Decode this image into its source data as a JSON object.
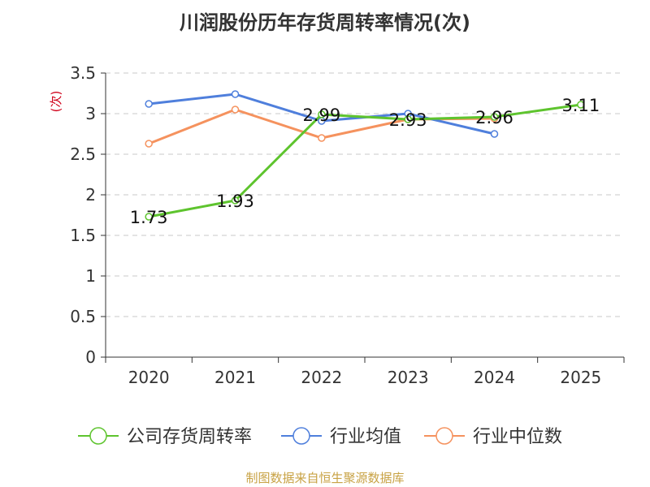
{
  "chart_data": {
    "type": "line",
    "title": "川润股份历年存货周转率情况(次)",
    "ylabel": "(次)",
    "xlabel": "",
    "categories": [
      "2020",
      "2021",
      "2022",
      "2023",
      "2024",
      "2025"
    ],
    "ylim": [
      0,
      3.5
    ],
    "yticks": [
      "0",
      "0.5",
      "1",
      "1.5",
      "2",
      "2.5",
      "3",
      "3.5"
    ],
    "grid": true,
    "legend_position": "bottom",
    "series": [
      {
        "name": "公司存货周转率",
        "color": "#5ec42e",
        "values": [
          1.73,
          1.93,
          2.99,
          2.93,
          2.96,
          3.11
        ],
        "labels": [
          "1.73",
          "1.93",
          "2.99",
          "2.93",
          "2.96",
          "3.11"
        ]
      },
      {
        "name": "行业均值",
        "color": "#4f7fdc",
        "values": [
          3.12,
          3.24,
          2.91,
          3.0,
          2.75,
          null
        ]
      },
      {
        "name": "行业中位数",
        "color": "#f5925e",
        "values": [
          2.63,
          3.05,
          2.7,
          2.93,
          2.94,
          null
        ]
      }
    ]
  },
  "source": "制图数据来自恒生聚源数据库"
}
